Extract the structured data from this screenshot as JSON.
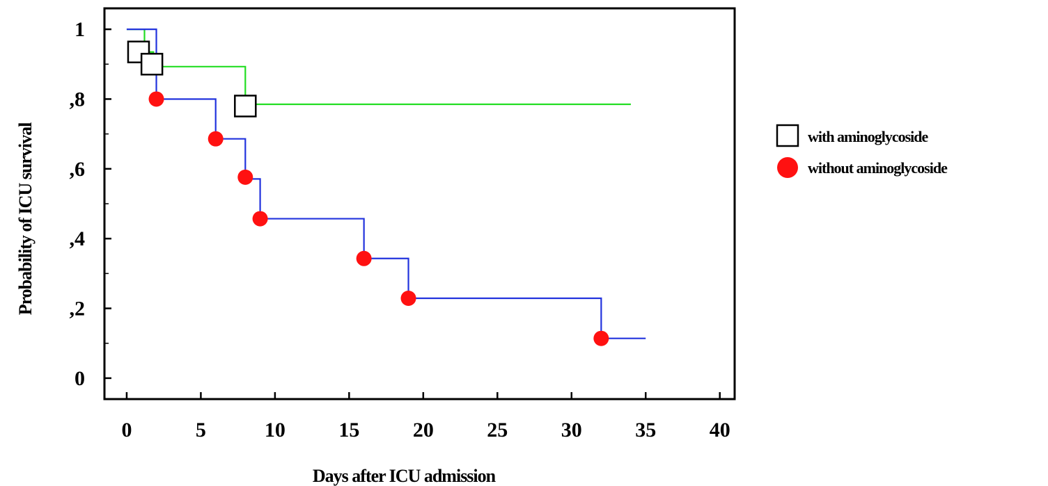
{
  "chart_data": {
    "type": "line",
    "subtype": "kaplan-meier step",
    "title": "",
    "xlabel": "Days after ICU admission",
    "ylabel": "Probability of ICU survival",
    "xlim": [
      -1.5,
      41
    ],
    "ylim": [
      -0.06,
      1.06
    ],
    "x_ticks": [
      0,
      5,
      10,
      15,
      20,
      25,
      30,
      35,
      40
    ],
    "x_tick_labels": [
      "0",
      "5",
      "10",
      "15",
      "20",
      "25",
      "30",
      "35",
      "40"
    ],
    "y_ticks": [
      0,
      0.2,
      0.4,
      0.6,
      0.8,
      1
    ],
    "y_tick_labels": [
      "0",
      ",2",
      ",4",
      ",6",
      ",8",
      "1"
    ],
    "grid": false,
    "legend_position": "right",
    "series": [
      {
        "name": "with aminoglycoside",
        "line_color": "#22dd22",
        "marker": "square",
        "marker_color": "#ffffff",
        "steps": [
          {
            "x": 0,
            "y": 1.0
          },
          {
            "x": 1.2,
            "y": 0.935
          },
          {
            "x": 1.8,
            "y": 0.9
          },
          {
            "x": 2.4,
            "y": 0.893
          },
          {
            "x": 8,
            "y": 0.785
          },
          {
            "x": 34,
            "y": 0.785
          }
        ],
        "markers": [
          {
            "x": 0.8,
            "y": 0.935
          },
          {
            "x": 1.7,
            "y": 0.9
          },
          {
            "x": 8,
            "y": 0.78
          }
        ]
      },
      {
        "name": "without aminoglycoside",
        "line_color": "#2233dd",
        "marker": "circle",
        "marker_color": "#ff1111",
        "steps": [
          {
            "x": 0,
            "y": 1.0
          },
          {
            "x": 2,
            "y": 0.8
          },
          {
            "x": 6,
            "y": 0.686
          },
          {
            "x": 8,
            "y": 0.571
          },
          {
            "x": 9,
            "y": 0.457
          },
          {
            "x": 16,
            "y": 0.343
          },
          {
            "x": 19,
            "y": 0.229
          },
          {
            "x": 32,
            "y": 0.114
          },
          {
            "x": 35,
            "y": 0.114
          }
        ],
        "markers": [
          {
            "x": 2,
            "y": 0.8
          },
          {
            "x": 6,
            "y": 0.686
          },
          {
            "x": 8,
            "y": 0.576
          },
          {
            "x": 9,
            "y": 0.457
          },
          {
            "x": 16,
            "y": 0.343
          },
          {
            "x": 19,
            "y": 0.229
          },
          {
            "x": 32,
            "y": 0.114
          }
        ]
      }
    ]
  }
}
